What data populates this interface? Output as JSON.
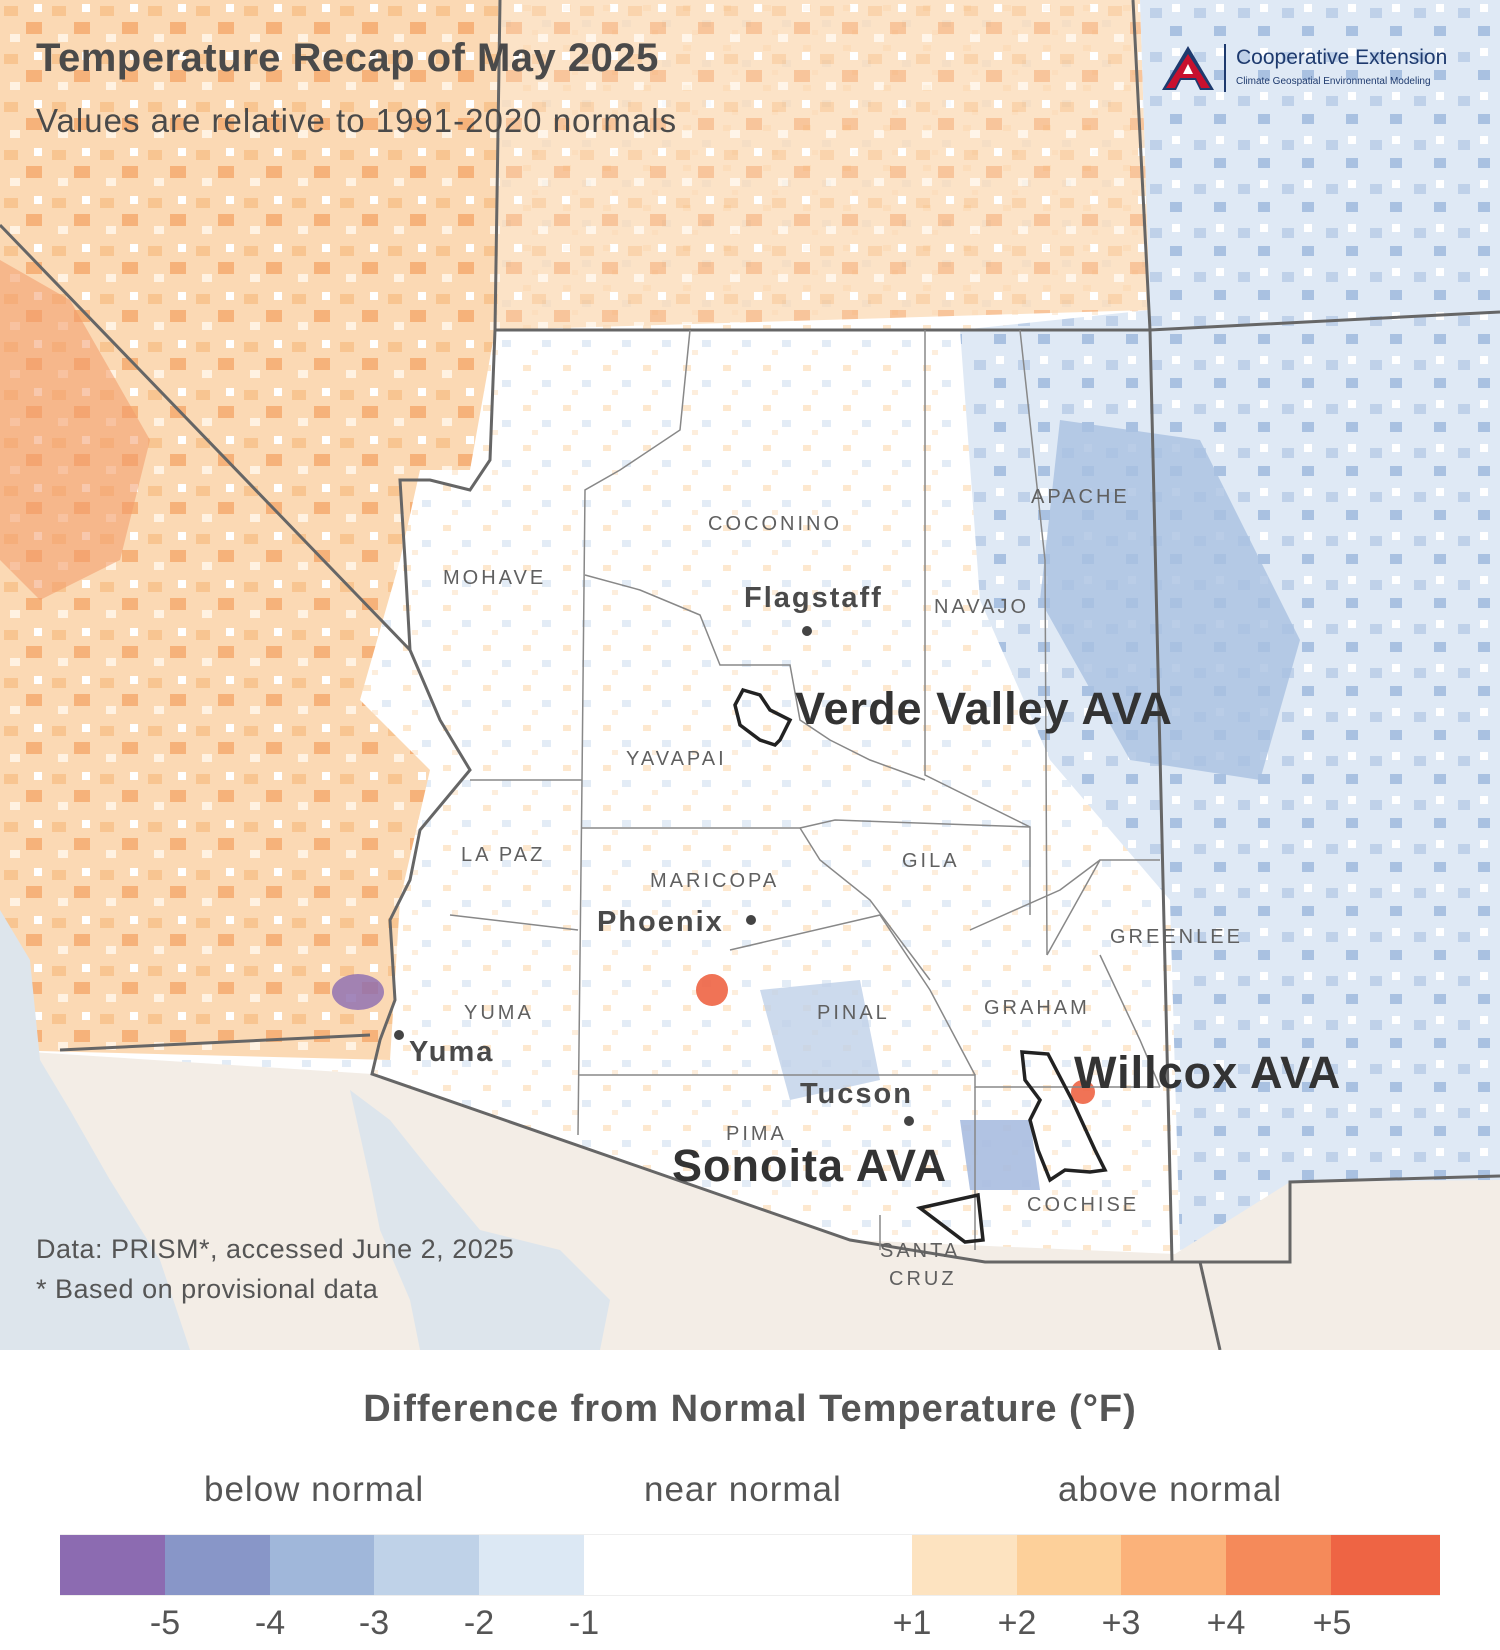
{
  "title": "Temperature Recap of May 2025",
  "subtitle": "Values are relative to 1991-2020 normals",
  "logo": {
    "name": "Cooperative Extension",
    "subtitle": "Climate Geospatial Environmental Modeling",
    "mark": "A",
    "brand_color": "#1e3a6e",
    "accent_color": "#c8102e"
  },
  "counties": [
    "MOHAVE",
    "COCONINO",
    "NAVAJO",
    "APACHE",
    "YAVAPAI",
    "LA PAZ",
    "MARICOPA",
    "GILA",
    "GREENLEE",
    "GRAHAM",
    "YUMA",
    "PINAL",
    "PIMA",
    "COCHISE",
    "SANTA",
    "CRUZ"
  ],
  "cities": [
    "Flagstaff",
    "Phoenix",
    "Yuma",
    "Tucson"
  ],
  "avas": [
    "Verde Valley AVA",
    "Willcox AVA",
    "Sonoita AVA"
  ],
  "credits": {
    "data": "Data: PRISM*, accessed June 2, 2025",
    "note": "* Based on provisional data"
  },
  "legend": {
    "title": "Difference from Normal Temperature (°F)",
    "groups": [
      "below normal",
      "near normal",
      "above normal"
    ],
    "ticks": [
      "-5",
      "-4",
      "-3",
      "-2",
      "-1",
      "+1",
      "+2",
      "+3",
      "+4",
      "+5"
    ],
    "colors": [
      "#8c6bb1",
      "#8896c8",
      "#a0b7da",
      "#bfd2e8",
      "#dce8f4",
      "#ffffff",
      "#fde3c0",
      "#fdd09a",
      "#fbb27a",
      "#f58a5a",
      "#ee6444"
    ]
  }
}
